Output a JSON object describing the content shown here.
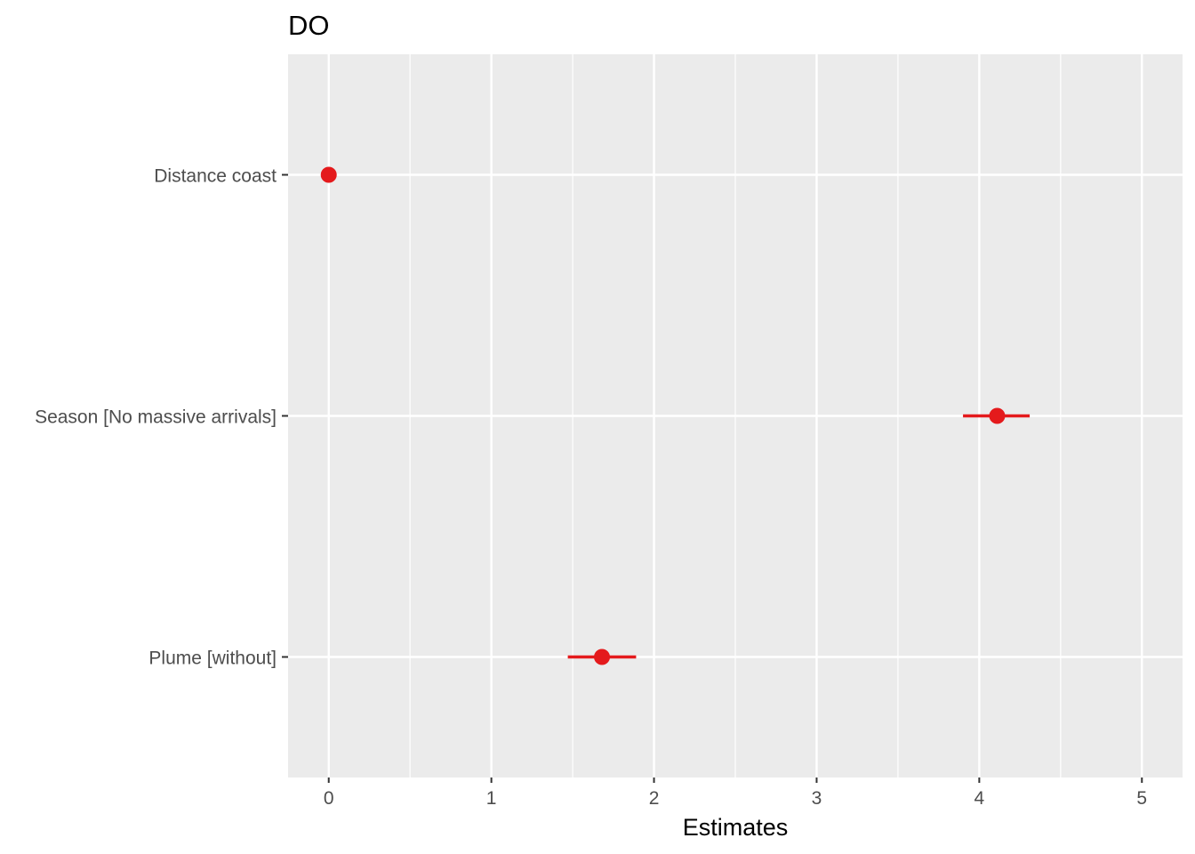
{
  "chart_data": {
    "type": "forest",
    "title": "DO",
    "xlabel": "Estimates",
    "ylabel": "",
    "xlim": [
      -0.25,
      5.25
    ],
    "x_ticks": [
      0,
      1,
      2,
      3,
      4,
      5
    ],
    "x_tick_labels": [
      "0",
      "1",
      "2",
      "3",
      "4",
      "5"
    ],
    "x_minor_ticks": [
      0.5,
      1.5,
      2.5,
      3.5,
      4.5
    ],
    "grid": true,
    "legend": "none",
    "colors": {
      "panel": "#ebebeb",
      "grid": "#ffffff",
      "point": "#e41a1c",
      "tick_label": "#4d4d4d"
    },
    "terms": [
      "Distance coast",
      "Season [No massive arrivals]",
      "Plume [without]"
    ],
    "estimates": [
      0.0,
      4.11,
      1.68
    ],
    "ci_low": [
      0.0,
      3.9,
      1.47
    ],
    "ci_high": [
      0.0,
      4.31,
      1.89
    ]
  }
}
